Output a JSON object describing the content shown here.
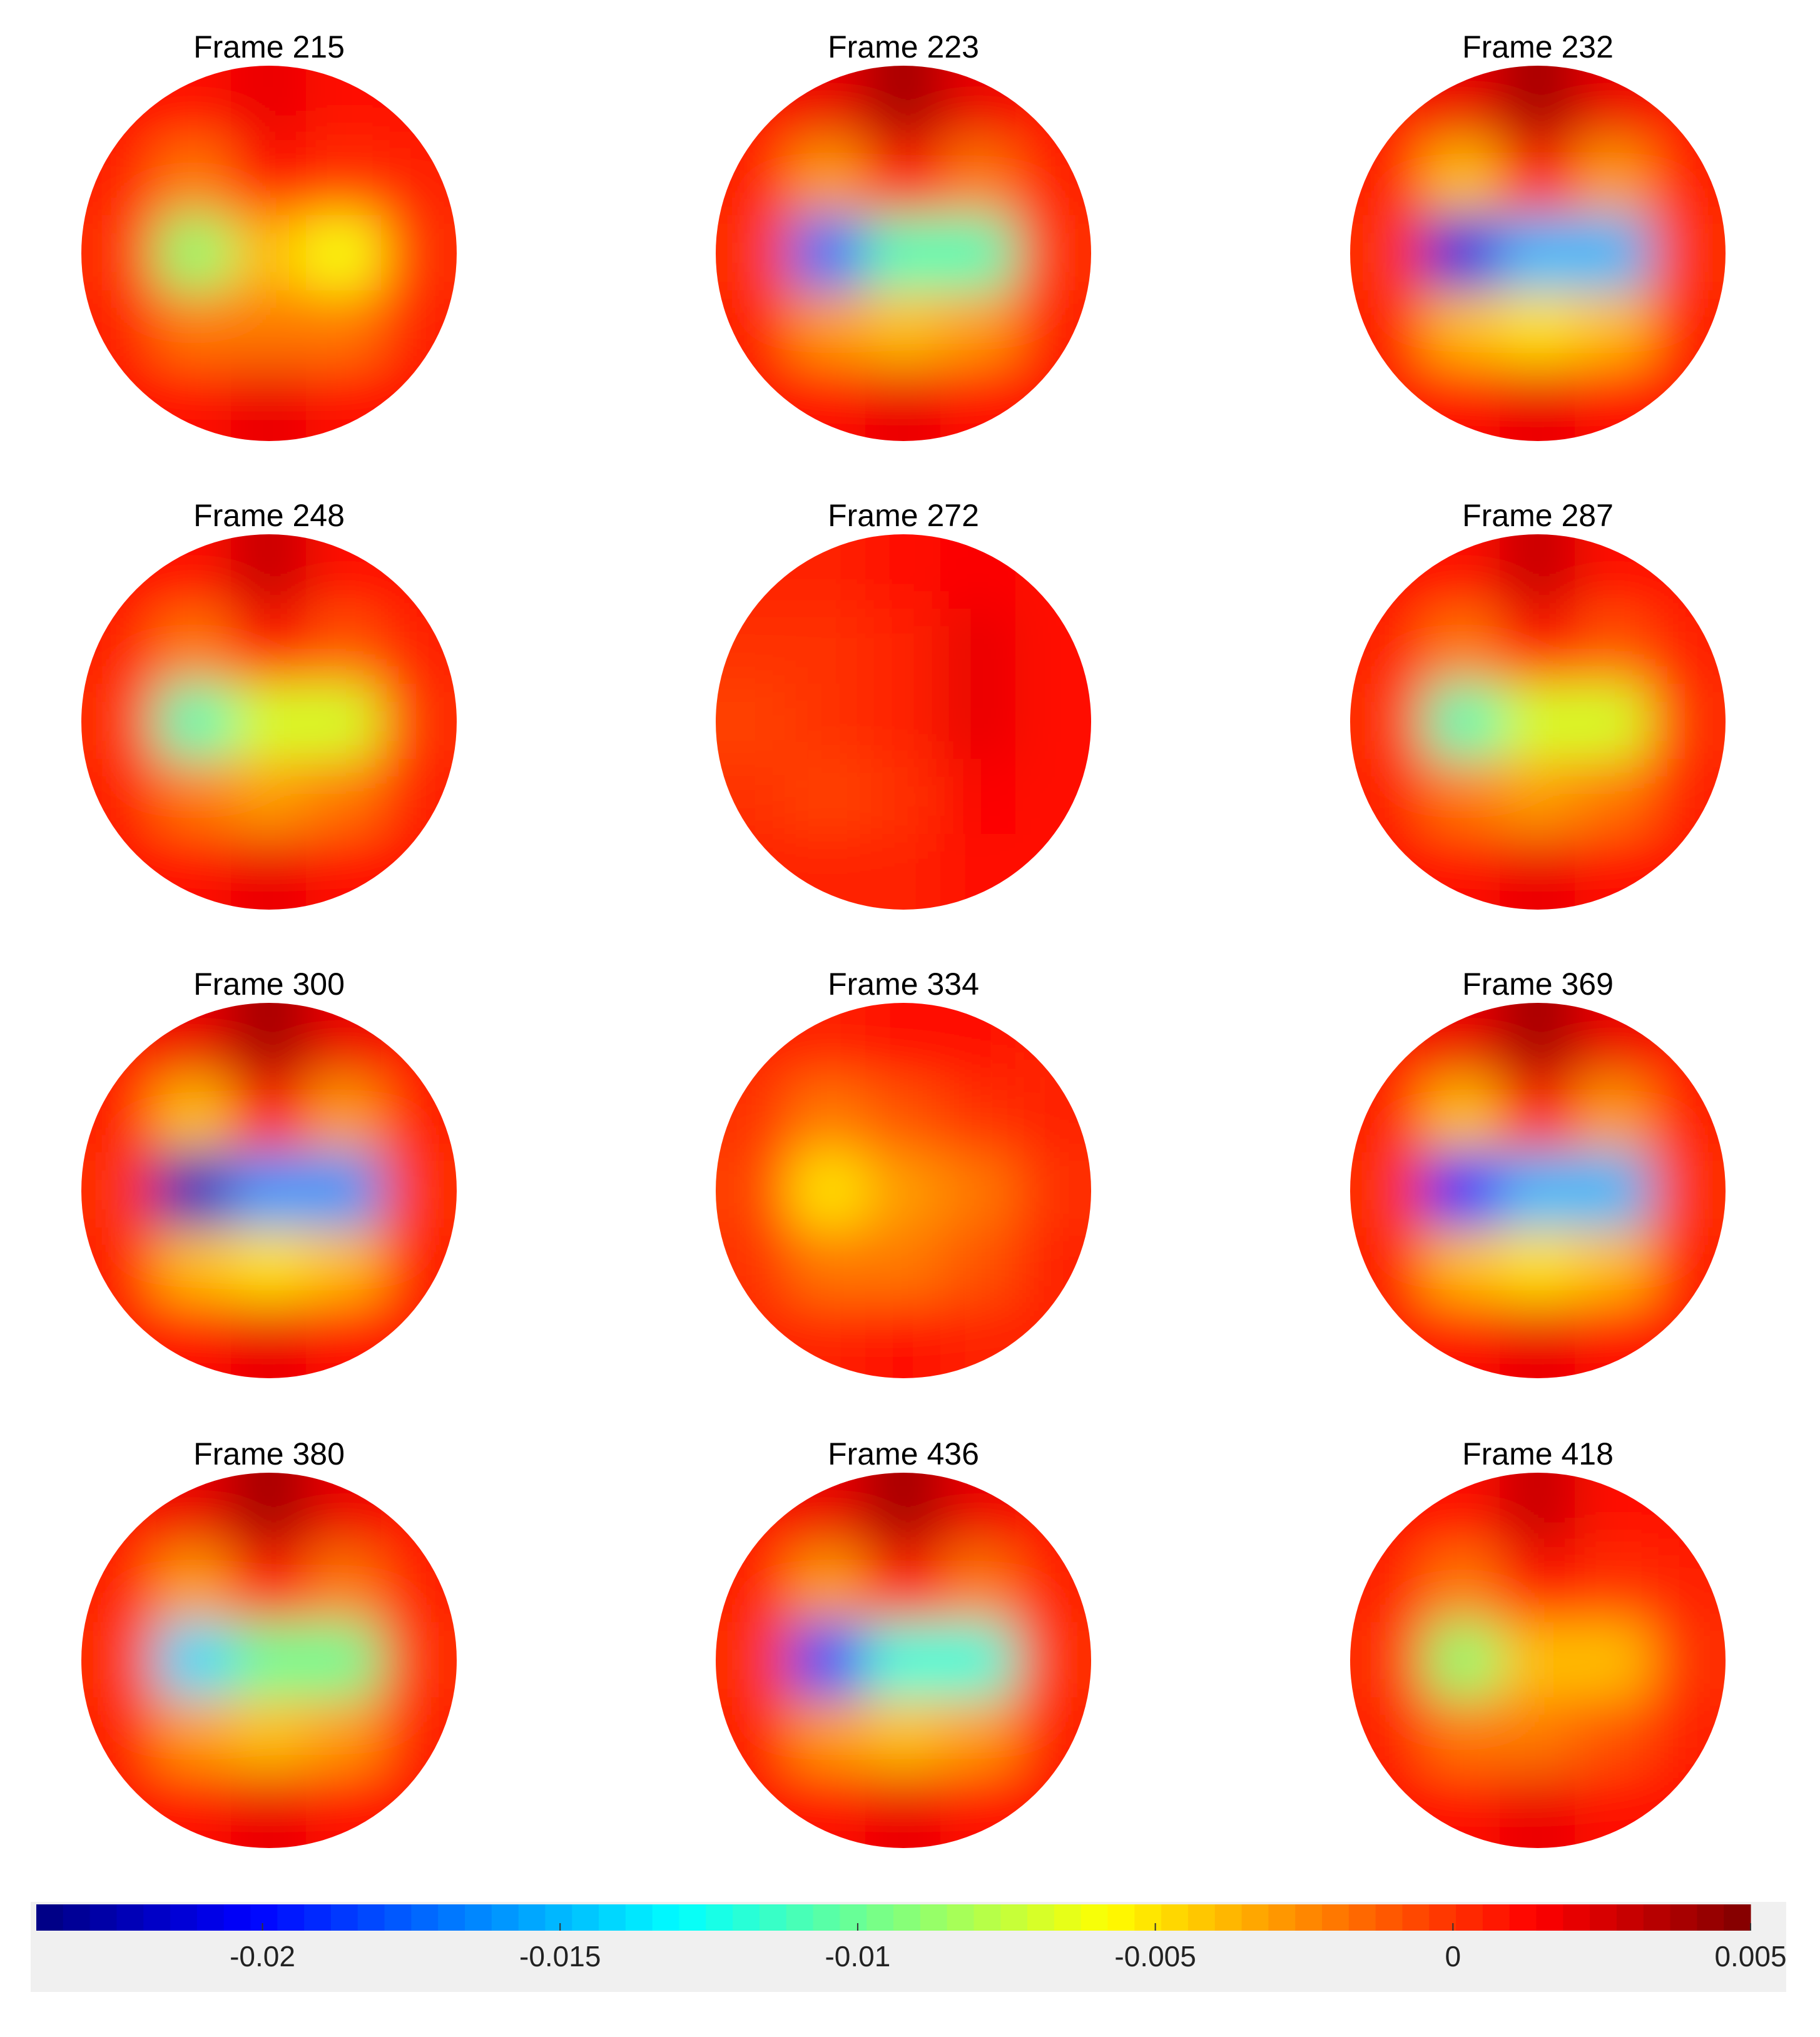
{
  "chart_data": {
    "type": "topomap",
    "colormap": "jet",
    "clim": [
      -0.0238,
      0.005
    ],
    "cticks": [
      -0.02,
      -0.015,
      -0.01,
      -0.005,
      0,
      0.005
    ],
    "panels": [
      {
        "title": "Frame 215",
        "values": [
          [
            0.001,
            0.001,
            0.002,
            0.001,
            0.001
          ],
          [
            0.0005,
            -0.002,
            0.001,
            0.0,
            0.0005
          ],
          [
            0.0,
            -0.009,
            -0.004,
            -0.006,
            0.0
          ],
          [
            0.0005,
            -0.002,
            -0.002,
            -0.002,
            0.0005
          ],
          [
            0.001,
            0.001,
            0.002,
            0.001,
            0.001
          ]
        ]
      },
      {
        "title": "Frame 223",
        "values": [
          [
            0.001,
            0.002,
            0.004,
            0.002,
            0.001
          ],
          [
            0.0005,
            -0.003,
            0.001,
            -0.002,
            0.0005
          ],
          [
            0.0,
            -0.017,
            -0.011,
            -0.011,
            0.0
          ],
          [
            0.0005,
            -0.003,
            -0.004,
            -0.003,
            0.0005
          ],
          [
            0.001,
            0.001,
            0.002,
            0.001,
            0.001
          ]
        ]
      },
      {
        "title": "Frame 232",
        "values": [
          [
            0.001,
            0.002,
            0.004,
            0.002,
            0.001
          ],
          [
            0.0005,
            -0.004,
            0.001,
            -0.003,
            0.0005
          ],
          [
            0.0,
            -0.021,
            -0.015,
            -0.015,
            0.0
          ],
          [
            0.0005,
            -0.004,
            -0.005,
            -0.004,
            0.0005
          ],
          [
            0.001,
            0.001,
            0.002,
            0.001,
            0.001
          ]
        ]
      },
      {
        "title": "Frame 248",
        "values": [
          [
            0.001,
            0.001,
            0.003,
            0.001,
            0.001
          ],
          [
            0.0005,
            -0.002,
            0.001,
            -0.001,
            0.0005
          ],
          [
            0.0,
            -0.011,
            -0.007,
            -0.007,
            0.0
          ],
          [
            0.0005,
            -0.002,
            -0.003,
            -0.002,
            0.0005
          ],
          [
            0.001,
            0.001,
            0.002,
            0.001,
            0.001
          ]
        ]
      },
      {
        "title": "Frame 272",
        "values": [
          [
            0.0005,
            0.0005,
            0.001,
            0.0015,
            0.001
          ],
          [
            0.0,
            0.0,
            0.0005,
            0.002,
            0.001
          ],
          [
            -0.0005,
            0.0,
            0.0005,
            0.002,
            0.001
          ],
          [
            0.0,
            -0.0005,
            0.0,
            0.0015,
            0.001
          ],
          [
            0.0005,
            0.0005,
            0.0005,
            0.001,
            0.001
          ]
        ]
      },
      {
        "title": "Frame 287",
        "values": [
          [
            0.001,
            0.001,
            0.003,
            0.001,
            0.001
          ],
          [
            0.0005,
            -0.002,
            0.001,
            -0.001,
            0.0005
          ],
          [
            0.0,
            -0.011,
            -0.007,
            -0.007,
            0.0
          ],
          [
            0.0005,
            -0.002,
            -0.003,
            -0.002,
            0.0005
          ],
          [
            0.001,
            0.001,
            0.002,
            0.001,
            0.001
          ]
        ]
      },
      {
        "title": "Frame 300",
        "values": [
          [
            0.001,
            0.002,
            0.004,
            0.002,
            0.001
          ],
          [
            0.0005,
            -0.004,
            0.001,
            -0.003,
            0.0005
          ],
          [
            0.0,
            -0.022,
            -0.016,
            -0.016,
            0.0
          ],
          [
            0.0005,
            -0.004,
            -0.005,
            -0.004,
            0.0005
          ],
          [
            0.001,
            0.001,
            0.002,
            0.001,
            0.001
          ]
        ]
      },
      {
        "title": "Frame 334",
        "values": [
          [
            0.0005,
            0.0005,
            0.001,
            0.001,
            0.0005
          ],
          [
            0.0,
            -0.002,
            -0.001,
            0.0,
            0.0005
          ],
          [
            -0.0005,
            -0.005,
            -0.003,
            -0.002,
            0.0
          ],
          [
            0.0,
            -0.002,
            -0.002,
            -0.001,
            0.0005
          ],
          [
            0.0005,
            0.0005,
            0.001,
            0.0005,
            0.0005
          ]
        ]
      },
      {
        "title": "Frame 369",
        "values": [
          [
            0.001,
            0.002,
            0.004,
            0.002,
            0.001
          ],
          [
            0.0005,
            -0.004,
            0.001,
            -0.003,
            0.0005
          ],
          [
            0.0,
            -0.02,
            -0.015,
            -0.015,
            0.0
          ],
          [
            0.0005,
            -0.004,
            -0.005,
            -0.004,
            0.0005
          ],
          [
            0.001,
            0.001,
            0.002,
            0.001,
            0.001
          ]
        ]
      },
      {
        "title": "Frame 380",
        "values": [
          [
            0.001,
            0.002,
            0.004,
            0.002,
            0.001
          ],
          [
            0.0005,
            -0.003,
            0.001,
            -0.002,
            0.0005
          ],
          [
            0.0,
            -0.014,
            -0.01,
            -0.01,
            0.0
          ],
          [
            0.0005,
            -0.003,
            -0.004,
            -0.003,
            0.0005
          ],
          [
            0.001,
            0.001,
            0.002,
            0.001,
            0.001
          ]
        ]
      },
      {
        "title": "Frame 436",
        "values": [
          [
            0.001,
            0.002,
            0.004,
            0.002,
            0.001
          ],
          [
            0.0005,
            -0.003,
            0.001,
            -0.002,
            0.0005
          ],
          [
            0.0,
            -0.018,
            -0.012,
            -0.012,
            0.0
          ],
          [
            0.0005,
            -0.003,
            -0.004,
            -0.003,
            0.0005
          ],
          [
            0.001,
            0.001,
            0.002,
            0.001,
            0.001
          ]
        ]
      },
      {
        "title": "Frame 418",
        "values": [
          [
            0.001,
            0.001,
            0.003,
            0.001,
            0.001
          ],
          [
            0.0005,
            -0.002,
            0.001,
            0.0,
            0.0005
          ],
          [
            0.0,
            -0.009,
            -0.004,
            -0.004,
            0.0
          ],
          [
            0.0005,
            -0.002,
            -0.002,
            -0.001,
            0.0005
          ],
          [
            0.001,
            0.001,
            0.002,
            0.001,
            0.001
          ]
        ]
      }
    ]
  }
}
